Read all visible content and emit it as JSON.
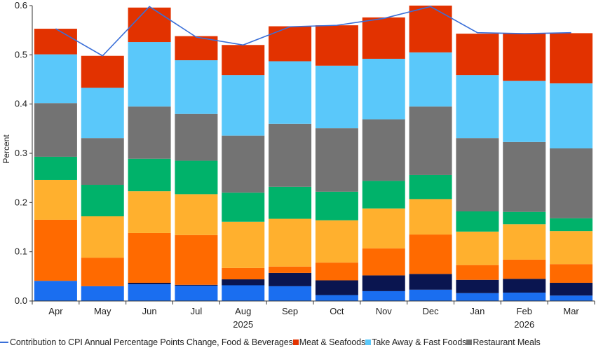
{
  "chart_data": {
    "type": "bar",
    "stacked": true,
    "categories": [
      "Apr",
      "May",
      "Jun",
      "Jul",
      "Aug",
      "Sep",
      "Oct",
      "Nov",
      "Dec",
      "Jan",
      "Feb",
      "Mar"
    ],
    "year_labels": [
      {
        "label": "2025",
        "category_index": 4
      },
      {
        "label": "2026",
        "category_index": 10
      }
    ],
    "ylabel": "Percent",
    "ylim": [
      0,
      0.6
    ],
    "yticks": [
      0.0,
      0.1,
      0.2,
      0.3,
      0.4,
      0.5,
      0.6
    ],
    "ytick_labels": [
      "0.0",
      "0.1",
      "0.2",
      "0.3",
      "0.4",
      "0.5",
      "0.6"
    ],
    "grid": false,
    "legend_position": "bottom",
    "series": [
      {
        "name": "",
        "color": "#1a6ef0",
        "values": [
          0.041,
          0.03,
          0.034,
          0.031,
          0.032,
          0.03,
          0.012,
          0.02,
          0.023,
          0.016,
          0.017,
          0.011
        ]
      },
      {
        "name": "",
        "color": "#0a1550",
        "values": [
          0.0,
          0.0,
          0.003,
          0.002,
          0.012,
          0.027,
          0.03,
          0.032,
          0.032,
          0.027,
          0.028,
          0.026
        ]
      },
      {
        "name": "",
        "color": "#ff6a00",
        "values": [
          0.124,
          0.058,
          0.101,
          0.101,
          0.023,
          0.013,
          0.036,
          0.055,
          0.08,
          0.03,
          0.039,
          0.038
        ]
      },
      {
        "name": "",
        "color": "#ffb02e",
        "values": [
          0.081,
          0.084,
          0.085,
          0.083,
          0.094,
          0.097,
          0.086,
          0.081,
          0.072,
          0.068,
          0.072,
          0.067
        ]
      },
      {
        "name": "",
        "color": "#00b26a",
        "values": [
          0.047,
          0.064,
          0.066,
          0.068,
          0.059,
          0.065,
          0.058,
          0.056,
          0.049,
          0.041,
          0.025,
          0.026
        ]
      },
      {
        "name": "Restaurant Meals",
        "color": "#737373",
        "values": [
          0.109,
          0.095,
          0.106,
          0.095,
          0.116,
          0.128,
          0.129,
          0.125,
          0.139,
          0.149,
          0.142,
          0.142
        ]
      },
      {
        "name": "Take Away & Fast Foods",
        "color": "#5ac8fa",
        "values": [
          0.099,
          0.102,
          0.131,
          0.109,
          0.123,
          0.127,
          0.127,
          0.123,
          0.11,
          0.128,
          0.124,
          0.132
        ]
      },
      {
        "name": "Meat & Seafoods",
        "color": "#e23200",
        "values": [
          0.052,
          0.065,
          0.07,
          0.049,
          0.061,
          0.071,
          0.082,
          0.084,
          0.095,
          0.084,
          0.097,
          0.102
        ]
      }
    ],
    "line": {
      "name": "Contribution to CPI Annual Percentage Points Change, Food & Beverages",
      "color": "#3a6fd8",
      "values": [
        0.553,
        0.498,
        0.598,
        0.536,
        0.52,
        0.557,
        0.56,
        0.574,
        0.598,
        0.545,
        0.543,
        0.545
      ]
    }
  }
}
